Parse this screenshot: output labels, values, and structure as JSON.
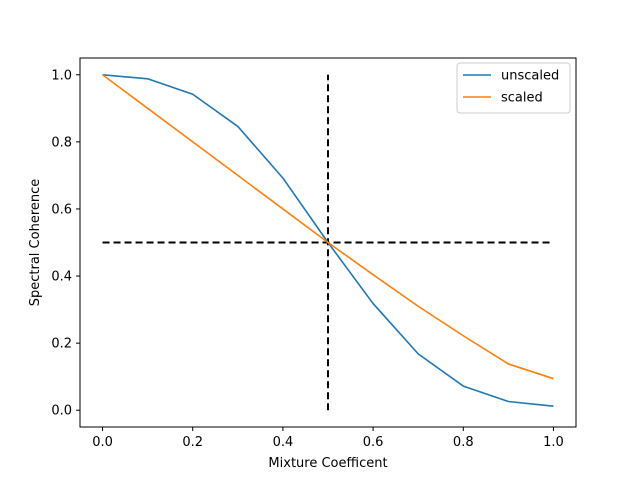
{
  "chart_data": {
    "type": "line",
    "title": "",
    "xlabel": "Mixture Coefficent",
    "ylabel": "Spectral Coherence",
    "xlim": [
      -0.05,
      1.05
    ],
    "ylim": [
      -0.05,
      1.05
    ],
    "xticks": [
      0.0,
      0.2,
      0.4,
      0.6,
      0.8,
      1.0
    ],
    "yticks": [
      0.0,
      0.2,
      0.4,
      0.6,
      0.8,
      1.0
    ],
    "xtick_labels": [
      "0.0",
      "0.2",
      "0.4",
      "0.6",
      "0.8",
      "1.0"
    ],
    "ytick_labels": [
      "0.0",
      "0.2",
      "0.4",
      "0.6",
      "0.8",
      "1.0"
    ],
    "grid": false,
    "legend_position": "top-right",
    "x": [
      0.0,
      0.1,
      0.2,
      0.3,
      0.4,
      0.5,
      0.6,
      0.7,
      0.8,
      0.9,
      1.0
    ],
    "series": [
      {
        "name": "unscaled",
        "color": "#1f77b4",
        "values": [
          1.0,
          0.988,
          0.942,
          0.846,
          0.692,
          0.5,
          0.318,
          0.168,
          0.072,
          0.026,
          0.012
        ]
      },
      {
        "name": "scaled",
        "color": "#ff7f0e",
        "values": [
          1.0,
          0.9,
          0.8,
          0.7,
          0.6,
          0.5,
          0.404,
          0.31,
          0.222,
          0.138,
          0.094
        ]
      }
    ],
    "reference_lines": [
      {
        "orientation": "horizontal",
        "value": 0.5,
        "from": 0.0,
        "to": 1.0,
        "style": "dashed",
        "color": "#000000"
      },
      {
        "orientation": "vertical",
        "value": 0.5,
        "from": 0.0,
        "to": 1.0,
        "style": "dashed",
        "color": "#000000"
      }
    ]
  }
}
